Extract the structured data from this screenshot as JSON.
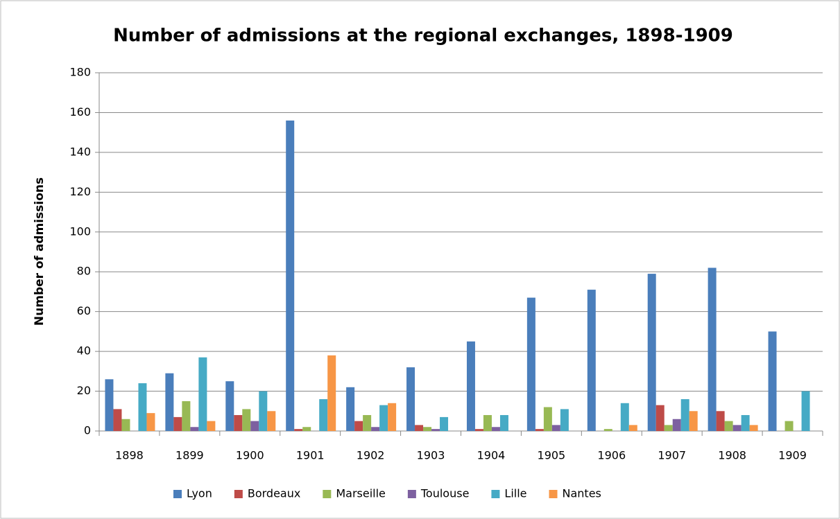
{
  "chart_data": {
    "type": "bar",
    "title": "Number of admissions at the regional exchanges, 1898-1909",
    "y_label": "Number of admissions",
    "categories": [
      "1898",
      "1899",
      "1900",
      "1901",
      "1902",
      "1903",
      "1904",
      "1905",
      "1906",
      "1907",
      "1908",
      "1909"
    ],
    "series": [
      {
        "name": "Lyon",
        "color": "#4a7ebb",
        "values": [
          26,
          29,
          25,
          156,
          22,
          32,
          45,
          67,
          71,
          79,
          82,
          50
        ]
      },
      {
        "name": "Bordeaux",
        "color": "#be4b48",
        "values": [
          11,
          7,
          8,
          1,
          5,
          3,
          1,
          1,
          0,
          13,
          10,
          0
        ]
      },
      {
        "name": "Marseille",
        "color": "#98b954",
        "values": [
          6,
          15,
          11,
          2,
          8,
          2,
          8,
          12,
          1,
          3,
          5,
          5
        ]
      },
      {
        "name": "Toulouse",
        "color": "#7d60a0",
        "values": [
          0,
          2,
          5,
          0,
          2,
          1,
          2,
          3,
          0,
          6,
          3,
          0
        ]
      },
      {
        "name": "Lille",
        "color": "#46aac5",
        "values": [
          24,
          37,
          20,
          16,
          13,
          7,
          8,
          11,
          14,
          16,
          8,
          20
        ]
      },
      {
        "name": "Nantes",
        "color": "#f79646",
        "values": [
          9,
          5,
          10,
          38,
          14,
          0,
          0,
          0,
          3,
          10,
          3,
          0
        ]
      }
    ],
    "ylim": [
      0,
      180
    ],
    "yticks": [
      0,
      20,
      40,
      60,
      80,
      100,
      120,
      140,
      160,
      180
    ],
    "grid": true,
    "legend": "bottom"
  }
}
